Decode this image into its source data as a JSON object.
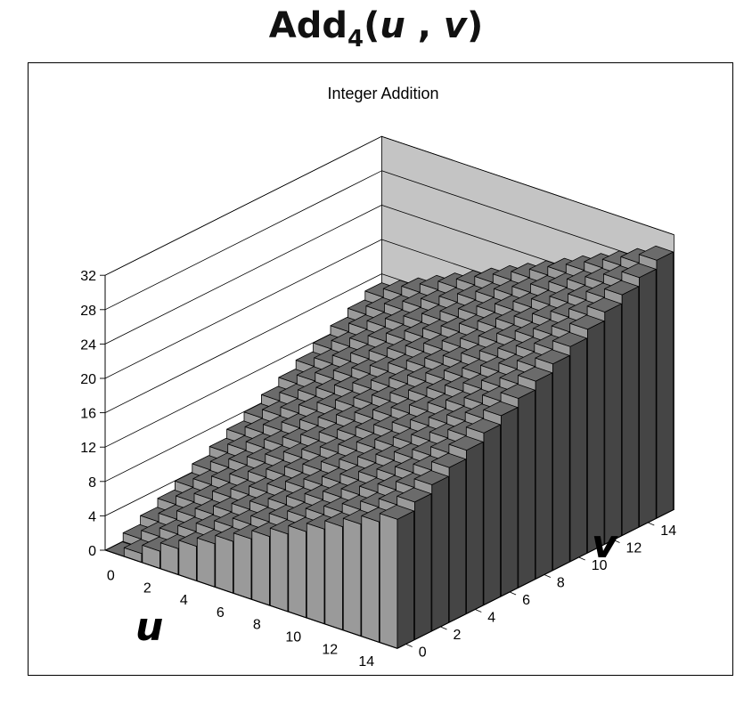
{
  "header": {
    "title_main": "Add",
    "title_sub": "4",
    "title_open": "(",
    "title_u": "u",
    "title_comma": " , ",
    "title_v": "v",
    "title_close": ")"
  },
  "chart_data": {
    "type": "bar3d",
    "title": "Integer Addition",
    "xlabel": "u",
    "ylabel": "v",
    "zlabel": "",
    "u": [
      0,
      1,
      2,
      3,
      4,
      5,
      6,
      7,
      8,
      9,
      10,
      11,
      12,
      13,
      14,
      15
    ],
    "v": [
      0,
      1,
      2,
      3,
      4,
      5,
      6,
      7,
      8,
      9,
      10,
      11,
      12,
      13,
      14,
      15
    ],
    "formula": "z = u + v",
    "zlim": [
      0,
      32
    ],
    "z_ticks": [
      0,
      4,
      8,
      12,
      16,
      20,
      24,
      28,
      32
    ],
    "u_ticks": [
      0,
      2,
      4,
      6,
      8,
      10,
      12,
      14
    ],
    "v_ticks": [
      0,
      2,
      4,
      6,
      8,
      10,
      12,
      14
    ],
    "colors": {
      "top": "#6b6b6b",
      "front": "#9a9a9a",
      "side": "#454545",
      "wall_left": "#ffffff",
      "wall_back": "#c4c4c4",
      "floor": "#c4c4c4"
    }
  }
}
